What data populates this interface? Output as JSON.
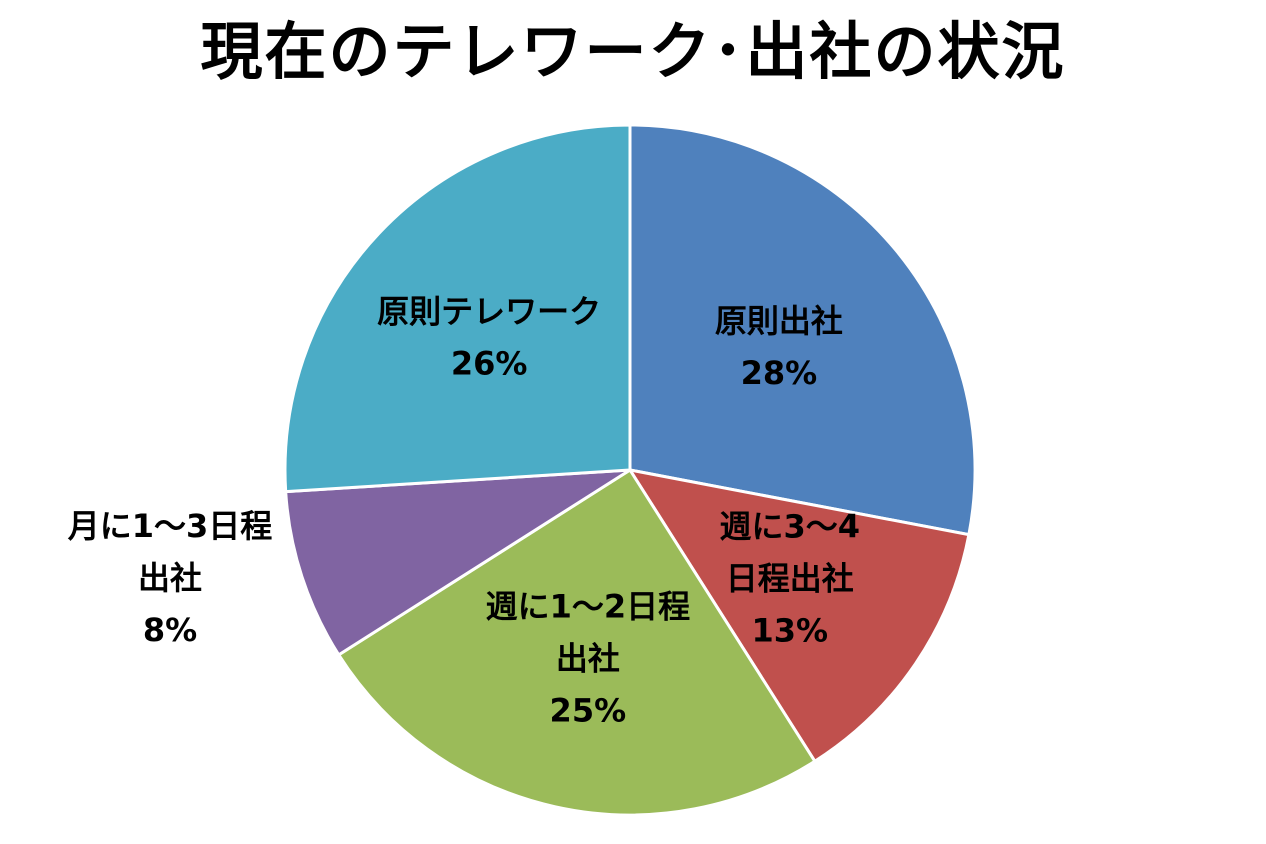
{
  "chart_data": {
    "type": "pie",
    "title": "現在のテレワーク･出社の状況",
    "slices": [
      {
        "label_lines": [
          "原則出社"
        ],
        "percent_label": "28%",
        "value": 28,
        "color": "#4f81bd"
      },
      {
        "label_lines": [
          "週に3～4",
          "日程出社"
        ],
        "percent_label": "13%",
        "value": 13,
        "color": "#c0504d"
      },
      {
        "label_lines": [
          "週に1～2日程",
          "出社"
        ],
        "percent_label": "25%",
        "value": 25,
        "color": "#9bbb59"
      },
      {
        "label_lines": [
          "月に1～3日程",
          "出社"
        ],
        "percent_label": "8%",
        "value": 8,
        "color": "#8064a2"
      },
      {
        "label_lines": [
          "原則テレワーク"
        ],
        "percent_label": "26%",
        "value": 26,
        "color": "#4bacc6"
      }
    ]
  }
}
